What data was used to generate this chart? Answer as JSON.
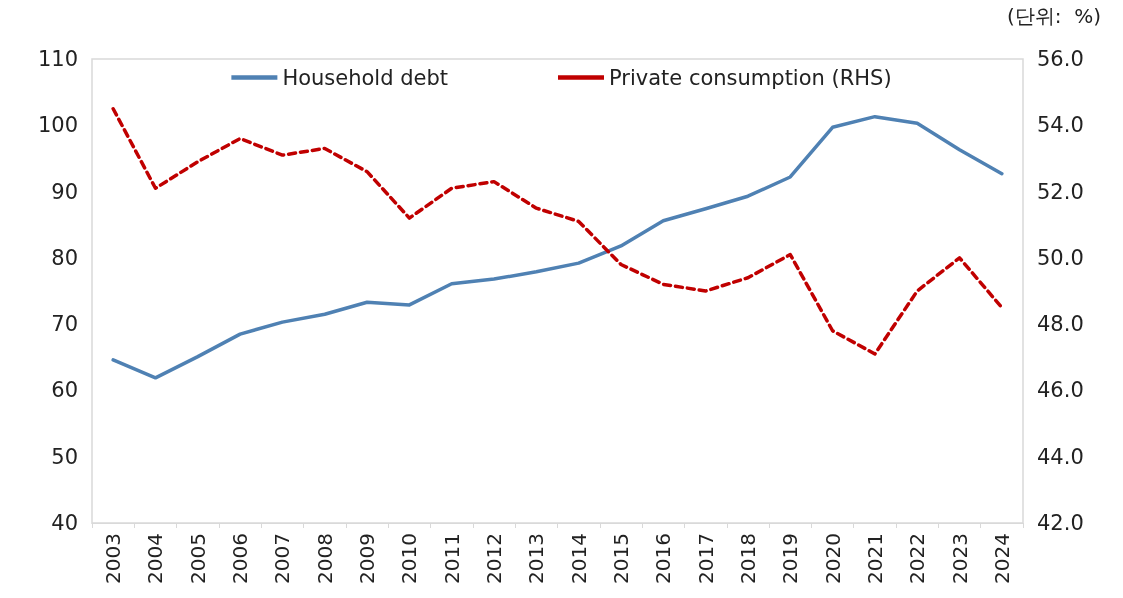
{
  "chart_data": {
    "type": "line",
    "categories": [
      "2003",
      "2004",
      "2005",
      "2006",
      "2007",
      "2008",
      "2009",
      "2010",
      "2011",
      "2012",
      "2013",
      "2014",
      "2015",
      "2016",
      "2017",
      "2018",
      "2019",
      "2020",
      "2021",
      "2022",
      "2023",
      "2024"
    ],
    "series": [
      {
        "name": "Household debt",
        "color": "#4f81b3",
        "line_style": "solid",
        "values": [
          64.6,
          61.9,
          65.1,
          68.5,
          70.3,
          71.5,
          73.3,
          72.9,
          76.1,
          76.8,
          77.9,
          79.2,
          81.8,
          85.6,
          87.4,
          89.3,
          92.2,
          99.7,
          101.3,
          100.3,
          96.3,
          92.7
        ]
      },
      {
        "name": "Private consumption (RHS)",
        "color": "#c00000",
        "line_style": "dashed",
        "axis": "y2",
        "values": [
          54.5,
          52.1,
          52.9,
          53.6,
          53.1,
          53.3,
          52.6,
          51.2,
          52.1,
          52.3,
          51.5,
          51.1,
          49.8,
          49.2,
          49.0,
          49.4,
          50.1,
          47.8,
          47.1,
          49.0,
          50.0,
          48.5
        ]
      }
    ],
    "ylim": [
      40,
      110
    ],
    "yticks": [
      40,
      50,
      60,
      70,
      80,
      90,
      100,
      110
    ],
    "y2lim": [
      42,
      56
    ],
    "y2ticks": [
      {
        "value": 42,
        "label": "42.0"
      },
      {
        "value": 44,
        "label": "44.0"
      },
      {
        "value": 46,
        "label": "46.0"
      },
      {
        "value": 48,
        "label": "48.0"
      },
      {
        "value": 50,
        "label": "50.0"
      },
      {
        "value": 52,
        "label": "52.0"
      },
      {
        "value": 54,
        "label": "54.0"
      },
      {
        "value": 56,
        "label": "56.0"
      }
    ],
    "annotations": [
      "(단위:  %)"
    ],
    "legend": "top",
    "grid": false,
    "marker": "none"
  }
}
